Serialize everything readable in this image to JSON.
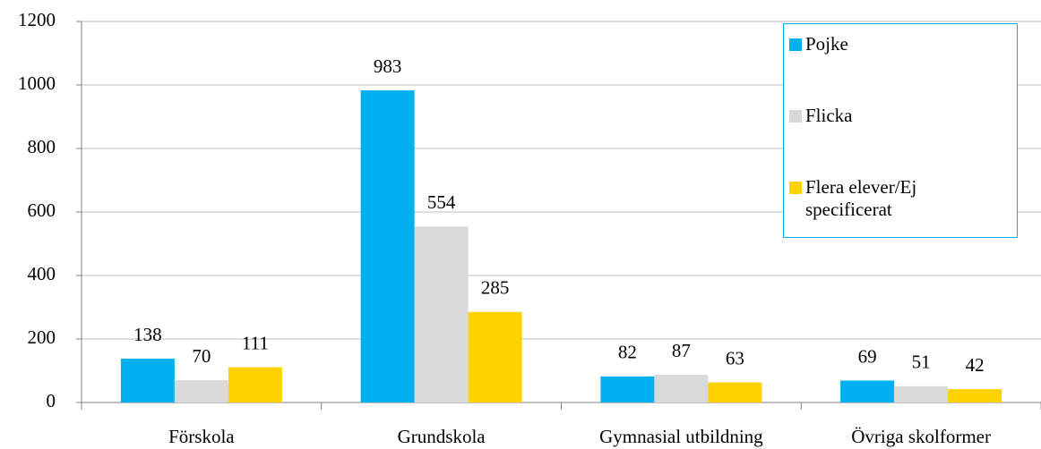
{
  "chart_data": {
    "type": "bar",
    "categories": [
      "Förskola",
      "Grundskola",
      "Gymnasial utbildning",
      "Övriga skolformer"
    ],
    "series": [
      {
        "name": "Pojke",
        "color": "#00b0f0",
        "values": [
          138,
          983,
          82,
          69
        ]
      },
      {
        "name": "Flicka",
        "color": "#d9d9d9",
        "values": [
          70,
          554,
          87,
          51
        ]
      },
      {
        "name": "Flera elever/Ej specificerat",
        "color": "#ffd200",
        "values": [
          111,
          285,
          63,
          42
        ]
      }
    ],
    "ylim": [
      0,
      1200
    ],
    "yticks": [
      0,
      200,
      400,
      600,
      800,
      1000,
      1200
    ],
    "grid": true,
    "legend": "top-right"
  }
}
